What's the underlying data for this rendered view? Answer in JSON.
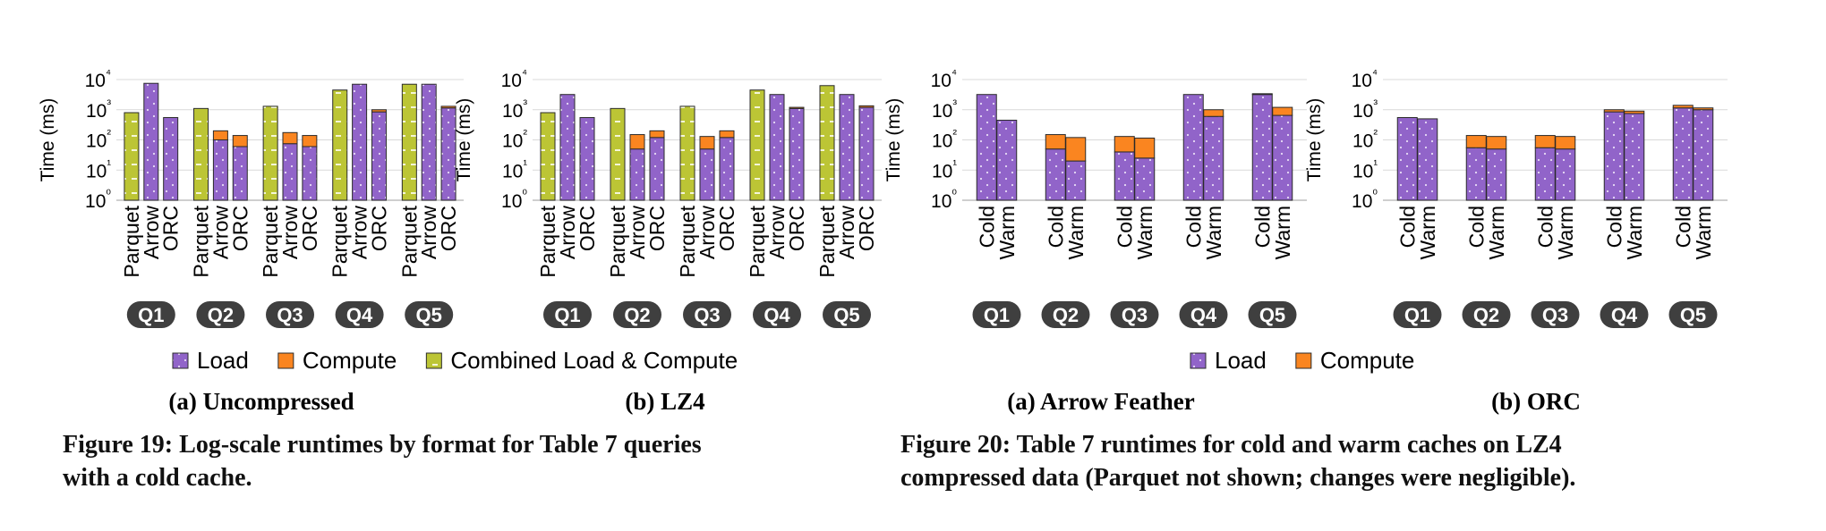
{
  "colors": {
    "load": "#9164c9",
    "compute": "#fa8520",
    "combined": "#bcc535",
    "pill": "#3f3f3f",
    "grid": "#d9d9d9"
  },
  "legends": {
    "left": [
      {
        "key": "load",
        "label": "Load"
      },
      {
        "key": "compute",
        "label": "Compute"
      },
      {
        "key": "combined",
        "label": "Combined Load & Compute"
      }
    ],
    "right": [
      {
        "key": "load",
        "label": "Load"
      },
      {
        "key": "compute",
        "label": "Compute"
      }
    ]
  },
  "chart_data": [
    {
      "type": "bar",
      "stacked": true,
      "log_scale": true,
      "title": "(a) Uncompressed",
      "ylabel": "Time (ms)",
      "ylim": [
        1,
        10000
      ],
      "ytick_labels": [
        "10⁰",
        "10¹",
        "10²",
        "10³",
        "10⁴"
      ],
      "groups": [
        "Q1",
        "Q2",
        "Q3",
        "Q4",
        "Q5"
      ],
      "categories": [
        "Parquet",
        "Arrow",
        "ORC"
      ],
      "series": [
        {
          "name": "Combined Load & Compute",
          "key": "combined",
          "values": [
            [
              800,
              null,
              null
            ],
            [
              1100,
              null,
              null
            ],
            [
              1300,
              null,
              null
            ],
            [
              4500,
              null,
              null
            ],
            [
              7000,
              null,
              null
            ]
          ]
        },
        {
          "name": "Load",
          "key": "load",
          "values": [
            [
              null,
              7500,
              550
            ],
            [
              null,
              100,
              60
            ],
            [
              null,
              75,
              60
            ],
            [
              null,
              7000,
              850
            ],
            [
              null,
              7000,
              1150
            ]
          ]
        },
        {
          "name": "Compute",
          "key": "compute",
          "values": [
            [
              null,
              0,
              0
            ],
            [
              null,
              100,
              80
            ],
            [
              null,
              100,
              80
            ],
            [
              null,
              0,
              150
            ],
            [
              null,
              0,
              150
            ]
          ]
        }
      ]
    },
    {
      "type": "bar",
      "stacked": true,
      "log_scale": true,
      "title": "(b) LZ4",
      "ylabel": "Time (ms)",
      "ylim": [
        1,
        10000
      ],
      "ytick_labels": [
        "10⁰",
        "10¹",
        "10²",
        "10³",
        "10⁴"
      ],
      "groups": [
        "Q1",
        "Q2",
        "Q3",
        "Q4",
        "Q5"
      ],
      "categories": [
        "Parquet",
        "Arrow",
        "ORC"
      ],
      "series": [
        {
          "name": "Combined Load & Compute",
          "key": "combined",
          "values": [
            [
              800,
              null,
              null
            ],
            [
              1100,
              null,
              null
            ],
            [
              1300,
              null,
              null
            ],
            [
              4500,
              null,
              null
            ],
            [
              6300,
              null,
              null
            ]
          ]
        },
        {
          "name": "Load",
          "key": "load",
          "values": [
            [
              null,
              3200,
              550
            ],
            [
              null,
              50,
              120
            ],
            [
              null,
              50,
              120
            ],
            [
              null,
              3200,
              1100
            ],
            [
              null,
              3200,
              1200
            ]
          ]
        },
        {
          "name": "Compute",
          "key": "compute",
          "values": [
            [
              null,
              0,
              0
            ],
            [
              null,
              100,
              80
            ],
            [
              null,
              80,
              80
            ],
            [
              null,
              0,
              100
            ],
            [
              null,
              0,
              150
            ]
          ]
        }
      ]
    },
    {
      "type": "bar",
      "stacked": true,
      "log_scale": true,
      "title": "(a) Arrow Feather",
      "ylabel": "Time (ms)",
      "ylim": [
        1,
        10000
      ],
      "ytick_labels": [
        "10⁰",
        "10¹",
        "10²",
        "10³",
        "10⁴"
      ],
      "groups": [
        "Q1",
        "Q2",
        "Q3",
        "Q4",
        "Q5"
      ],
      "categories": [
        "Cold",
        "Warm"
      ],
      "series": [
        {
          "name": "Load",
          "key": "load",
          "values": [
            [
              3200,
              450
            ],
            [
              50,
              20
            ],
            [
              40,
              25
            ],
            [
              3200,
              600
            ],
            [
              3200,
              650
            ]
          ]
        },
        {
          "name": "Compute",
          "key": "compute",
          "values": [
            [
              0,
              0
            ],
            [
              100,
              100
            ],
            [
              90,
              90
            ],
            [
              0,
              400
            ],
            [
              200,
              550
            ]
          ]
        }
      ]
    },
    {
      "type": "bar",
      "stacked": true,
      "log_scale": true,
      "title": "(b) ORC",
      "ylabel": "Time (ms)",
      "ylim": [
        1,
        10000
      ],
      "ytick_labels": [
        "10⁰",
        "10¹",
        "10²",
        "10³",
        "10⁴"
      ],
      "groups": [
        "Q1",
        "Q2",
        "Q3",
        "Q4",
        "Q5"
      ],
      "categories": [
        "Cold",
        "Warm"
      ],
      "series": [
        {
          "name": "Load",
          "key": "load",
          "values": [
            [
              550,
              500
            ],
            [
              55,
              50
            ],
            [
              55,
              50
            ],
            [
              850,
              750
            ],
            [
              1150,
              1000
            ]
          ]
        },
        {
          "name": "Compute",
          "key": "compute",
          "values": [
            [
              0,
              0
            ],
            [
              85,
              80
            ],
            [
              85,
              80
            ],
            [
              150,
              150
            ],
            [
              250,
              150
            ]
          ]
        }
      ]
    }
  ],
  "captions": {
    "fig19": {
      "label": "Figure 19:",
      "line1": "Log-scale runtimes by format for Table 7 queries",
      "line2": "with a cold cache."
    },
    "fig20": {
      "label": "Figure 20:",
      "line1": "Table 7 runtimes for cold and warm caches on LZ4",
      "line2": "compressed data (Parquet not shown; changes were negligible)."
    }
  }
}
